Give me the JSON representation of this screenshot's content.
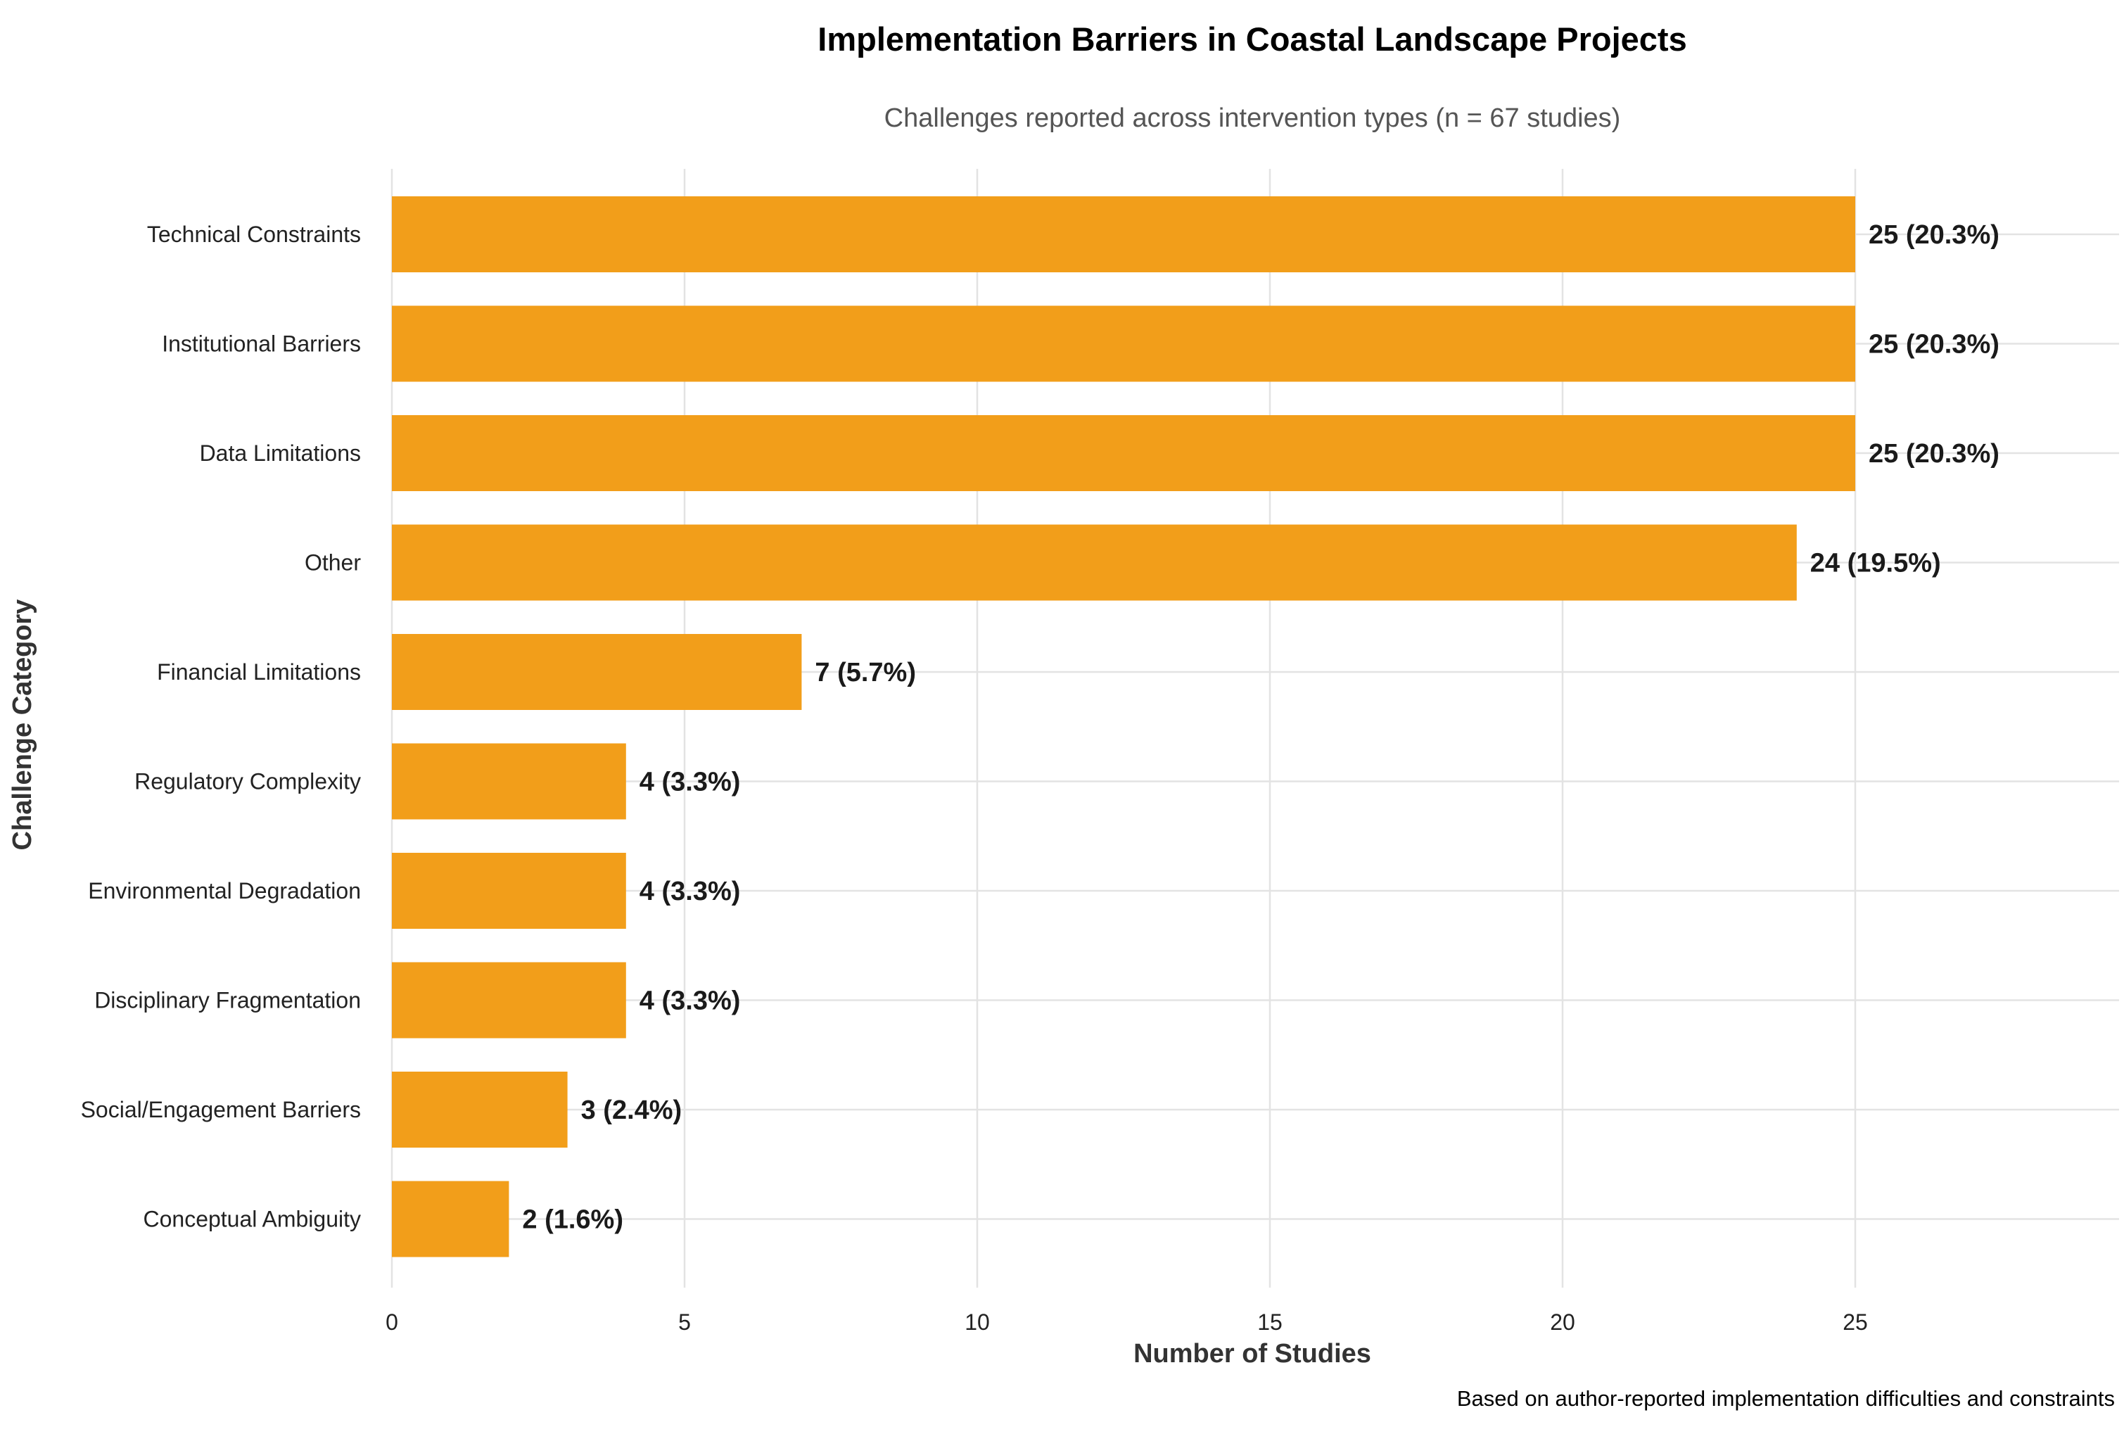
{
  "chart_data": {
    "type": "bar",
    "orientation": "horizontal",
    "title": "Implementation Barriers in Coastal Landscape Projects",
    "subtitle": "Challenges reported across intervention types (n = 67 studies)",
    "caption": "Based on author-reported implementation difficulties and constraints",
    "xlabel": "Number of Studies",
    "ylabel": "Challenge Category",
    "xlim": [
      0,
      29
    ],
    "xticks": [
      0,
      5,
      10,
      15,
      20,
      25
    ],
    "xtick_labels": [
      "0",
      "5",
      "10",
      "15",
      "20",
      "25"
    ],
    "grid": true,
    "bar_color": "#f29e1a",
    "categories": [
      "Technical Constraints",
      "Institutional Barriers",
      "Data Limitations",
      "Other",
      "Financial Limitations",
      "Regulatory Complexity",
      "Environmental Degradation",
      "Disciplinary Fragmentation",
      "Social/Engagement Barriers",
      "Conceptual Ambiguity"
    ],
    "values": [
      25,
      25,
      25,
      24,
      7,
      4,
      4,
      4,
      3,
      2
    ],
    "labels": [
      "25 (20.3%)",
      "25 (20.3%)",
      "25 (20.3%)",
      "24 (19.5%)",
      "7 (5.7%)",
      "4 (3.3%)",
      "4 (3.3%)",
      "4 (3.3%)",
      "3 (2.4%)",
      "2 (1.6%)"
    ]
  }
}
